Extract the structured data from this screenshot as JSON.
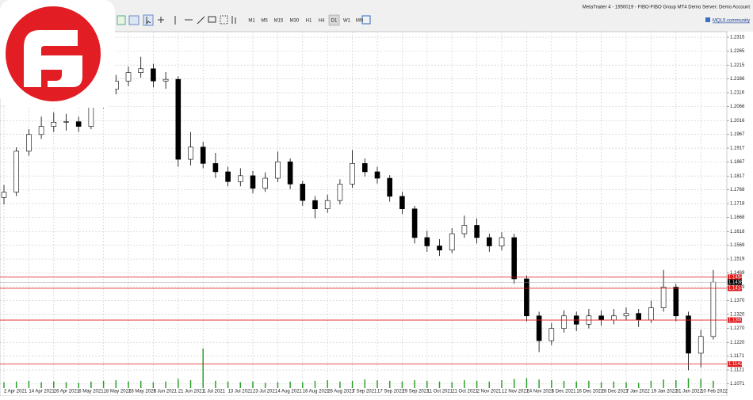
{
  "window": {
    "title": "MetaTrader 4 - 1950019 - FIBO-FIBO Group MT4 Demo Server: Demo Account",
    "community": "MQL5.community"
  },
  "toolbar": {
    "timeframes": [
      "M1",
      "M5",
      "M15",
      "M30",
      "H1",
      "H4",
      "D1",
      "W1",
      "MN"
    ],
    "active": "D1"
  },
  "chart_data": {
    "type": "candlestick",
    "up_color": "#ffffff",
    "down_color": "#000000",
    "volume_color": "#2e9e2e",
    "level_color": "#e0191b",
    "grid": true,
    "ylim": [
      1.105,
      1.2335
    ],
    "yticks": [
      1.2315,
      1.2265,
      1.2215,
      1.2166,
      1.2116,
      1.2066,
      1.2016,
      1.1967,
      1.1917,
      1.1867,
      1.1817,
      1.1768,
      1.1718,
      1.1668,
      1.1618,
      1.1569,
      1.1519,
      1.1469,
      1.1419,
      {
        "value": 1.137,
        "label": "1.1370"
      },
      {
        "value": 1.132,
        "label": "1.1320"
      },
      {
        "value": 1.127,
        "label": "1.1270"
      },
      {
        "value": 1.122,
        "label": "1.1220"
      },
      1.1171,
      1.1121,
      1.1071
    ],
    "x_labels": [
      "2 Apr 2021",
      "14 Apr 2021",
      "26 Apr 2021",
      "6 May 2021",
      "18 May 2021",
      "28 May 2021",
      "9 Jun 2021",
      "21 Jun 2021",
      "1 Jul 2021",
      "13 Jul 2021",
      "23 Jul 2021",
      "4 Aug 2021",
      "16 Aug 2021",
      "26 Aug 2021",
      "7 Sep 2021",
      "17 Sep 2021",
      "29 Sep 2021",
      "11 Oct 2021",
      "21 Oct 2021",
      "2 Nov 2021",
      "12 Nov 2021",
      "24 Nov 2021",
      "6 Dec 2021",
      "16 Dec 2021",
      "28 Dec 2021",
      "7 Jan 2022",
      "19 Jan 2022",
      "31 Jan 2022",
      "10 Feb 2022"
    ],
    "levels": [
      1.1454,
      1.1414,
      {
        "value": 1.13,
        "label": "1.1300"
      },
      1.1142
    ],
    "current_price": 1.1436,
    "candles": [
      [
        1.174,
        1.1785,
        1.1715,
        1.1759
      ],
      [
        1.1759,
        1.192,
        1.1745,
        1.1906
      ],
      [
        1.1906,
        1.1985,
        1.189,
        1.1966
      ],
      [
        1.1966,
        1.203,
        1.195,
        1.1995
      ],
      [
        1.1995,
        1.2045,
        1.1975,
        1.201
      ],
      [
        1.201,
        1.204,
        1.198,
        1.2012
      ],
      [
        1.2012,
        1.203,
        1.1975,
        1.1995
      ],
      [
        1.1995,
        1.21,
        1.1985,
        1.2084
      ],
      [
        1.2084,
        1.215,
        1.206,
        1.2128
      ],
      [
        1.2128,
        1.218,
        1.211,
        1.2158
      ],
      [
        1.2158,
        1.221,
        1.214,
        1.2188
      ],
      [
        1.2188,
        1.2245,
        1.217,
        1.2202
      ],
      [
        1.2202,
        1.222,
        1.2135,
        1.2158
      ],
      [
        1.2158,
        1.219,
        1.213,
        1.2164
      ],
      [
        1.2164,
        1.2175,
        1.185,
        1.1877
      ],
      [
        1.1877,
        1.1975,
        1.1855,
        1.1921
      ],
      [
        1.1921,
        1.194,
        1.1845,
        1.1862
      ],
      [
        1.1862,
        1.19,
        1.181,
        1.1832
      ],
      [
        1.1832,
        1.185,
        1.178,
        1.1797
      ],
      [
        1.1797,
        1.1845,
        1.178,
        1.1818
      ],
      [
        1.1818,
        1.1835,
        1.1755,
        1.1773
      ],
      [
        1.1773,
        1.183,
        1.176,
        1.1809
      ],
      [
        1.1809,
        1.1905,
        1.1795,
        1.1868
      ],
      [
        1.1868,
        1.188,
        1.177,
        1.1788
      ],
      [
        1.1788,
        1.18,
        1.171,
        1.1729
      ],
      [
        1.1729,
        1.1745,
        1.1665,
        1.1699
      ],
      [
        1.1699,
        1.175,
        1.1685,
        1.1729
      ],
      [
        1.1729,
        1.1805,
        1.1715,
        1.1788
      ],
      [
        1.1788,
        1.191,
        1.1775,
        1.1862
      ],
      [
        1.1862,
        1.188,
        1.1815,
        1.1832
      ],
      [
        1.1832,
        1.185,
        1.179,
        1.1809
      ],
      [
        1.1809,
        1.182,
        1.1725,
        1.1744
      ],
      [
        1.1744,
        1.176,
        1.168,
        1.1699
      ],
      [
        1.1699,
        1.171,
        1.1575,
        1.1596
      ],
      [
        1.1596,
        1.162,
        1.1545,
        1.1566
      ],
      [
        1.1566,
        1.159,
        1.153,
        1.1551
      ],
      [
        1.1551,
        1.163,
        1.154,
        1.161
      ],
      [
        1.161,
        1.1675,
        1.1595,
        1.164
      ],
      [
        1.164,
        1.1665,
        1.1575,
        1.1596
      ],
      [
        1.1596,
        1.161,
        1.1545,
        1.1566
      ],
      [
        1.1566,
        1.1615,
        1.155,
        1.1596
      ],
      [
        1.1596,
        1.161,
        1.143,
        1.1448
      ],
      [
        1.1448,
        1.146,
        1.1295,
        1.1315
      ],
      [
        1.1315,
        1.133,
        1.1185,
        1.1226
      ],
      [
        1.1226,
        1.129,
        1.121,
        1.127
      ],
      [
        1.127,
        1.1335,
        1.1255,
        1.1315
      ],
      [
        1.1315,
        1.133,
        1.126,
        1.1285
      ],
      [
        1.1285,
        1.134,
        1.127,
        1.1315
      ],
      [
        1.1315,
        1.1335,
        1.128,
        1.13
      ],
      [
        1.13,
        1.134,
        1.1285,
        1.1315
      ],
      [
        1.1315,
        1.1345,
        1.13,
        1.1324
      ],
      [
        1.1324,
        1.134,
        1.1275,
        1.13
      ],
      [
        1.13,
        1.137,
        1.129,
        1.1344
      ],
      [
        1.1344,
        1.148,
        1.133,
        1.1418
      ],
      [
        1.1418,
        1.143,
        1.1295,
        1.1315
      ],
      [
        1.1315,
        1.133,
        1.112,
        1.1181
      ],
      [
        1.1181,
        1.1265,
        1.113,
        1.1241
      ],
      [
        1.1241,
        1.148,
        1.123,
        1.1436
      ]
    ],
    "volumes": [
      9,
      10,
      11,
      9,
      10,
      9,
      8,
      10,
      11,
      12,
      10,
      11,
      9,
      10,
      14,
      12,
      60,
      11,
      10,
      9,
      10,
      8,
      9,
      10,
      9,
      11,
      12,
      10,
      11,
      13,
      12,
      11,
      10,
      12,
      11,
      10,
      9,
      12,
      11,
      10,
      12,
      14,
      15,
      13,
      12,
      11,
      10,
      11,
      9,
      10,
      9,
      8,
      11,
      13,
      12,
      15,
      14,
      11
    ]
  }
}
